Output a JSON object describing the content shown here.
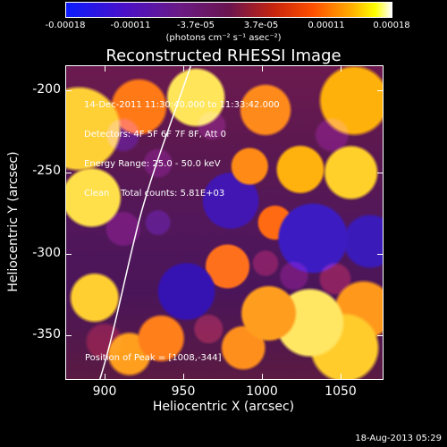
{
  "colorbar": {
    "ticks": [
      "-0.00018",
      "-0.00011",
      "-3.7e-05",
      "3.7e-05",
      "0.00011",
      "0.00018"
    ],
    "units": "(photons cm⁻² s⁻¹ asec⁻²)"
  },
  "plot": {
    "title": "Reconstructed RHESSI Image",
    "info_lines": [
      "14-Dec-2011 11:30:40.000 to 11:33:42.000",
      "Detectors: 4F 5F 6F 7F 8F, Att 0",
      "Energy Range: 25.0 - 50.0 keV",
      "Clean    Total counts: 5.81E+03"
    ],
    "peak_text": "Position of Peak = [1008,-344]",
    "x_label": "Heliocentric X (arcsec)",
    "y_label": "Heliocentric Y (arcsec)",
    "x_ticks": [
      "900",
      "950",
      "1000",
      "1050"
    ],
    "y_ticks": [
      "-200",
      "-250",
      "-300",
      "-350"
    ],
    "footer_date": "18-Aug-2013 05:29"
  }
}
